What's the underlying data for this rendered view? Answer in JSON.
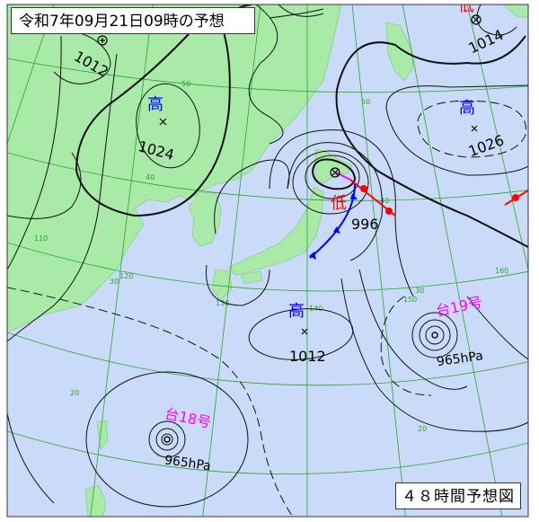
{
  "title": "令和7年09月21日09時の予想",
  "forecast_label": "４８時間予想図",
  "colors": {
    "land": "#a9eaa9",
    "sea": "#c9dbf8",
    "grid": "#2aa52a",
    "high": "#0000ff",
    "low": "#ff0000",
    "typhoon": "#ff00ff",
    "cold_front": "#0000ff",
    "warm_front": "#ff0000",
    "occluded_front": "#ff00ff"
  },
  "systems": {
    "high_nw": {
      "symbol": "高",
      "pressure": "1024"
    },
    "high_ne": {
      "symbol": "高",
      "pressure": "1026"
    },
    "high_s": {
      "symbol": "高",
      "pressure": "1012"
    },
    "low_hokkaido": {
      "symbol": "低",
      "pressure": "996"
    },
    "low_nne": {
      "symbol": "低",
      "pressure": "1014"
    },
    "low_nw": {
      "pressure": "1012"
    },
    "typhoon_18": {
      "name": "台18号",
      "pressure": "965hPa"
    },
    "typhoon_19": {
      "name": "台19号",
      "pressure": "965hPa"
    }
  },
  "grid_labels": {
    "lat50": "50",
    "lat40a": "40",
    "lat40b": "40",
    "lat30a": "30",
    "lat30b": "30",
    "lat20a": "20",
    "lat20b": "20",
    "lon110": "110",
    "lon120": "120",
    "lon130": "130",
    "lon140": "140",
    "lon150": "150",
    "lon160": "160"
  }
}
